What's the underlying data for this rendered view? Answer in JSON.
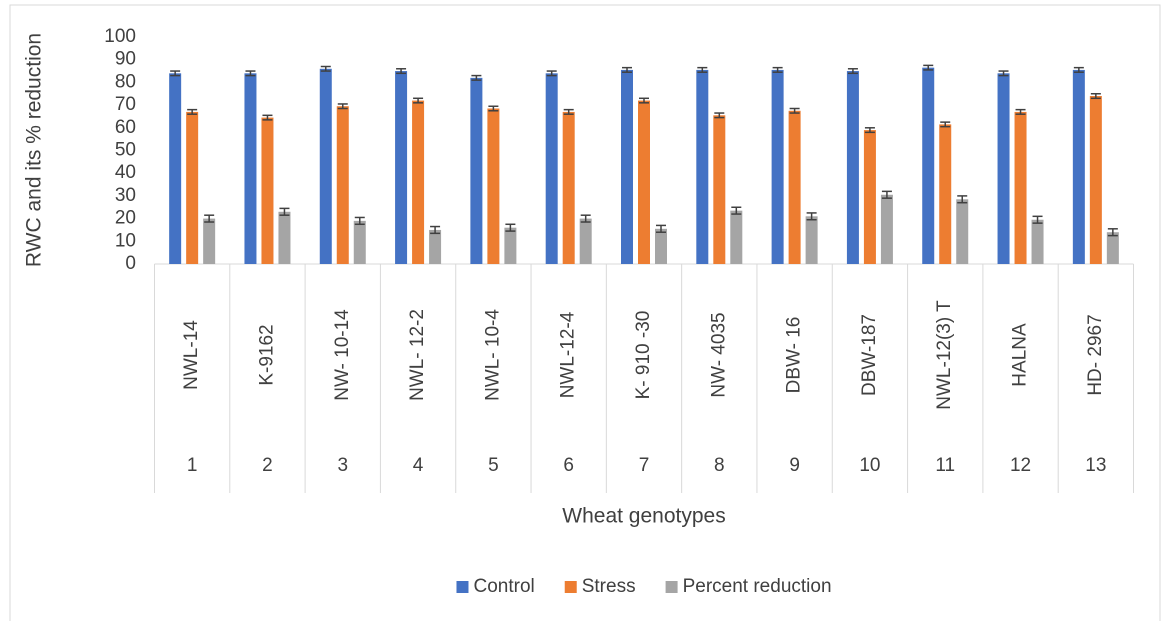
{
  "chart_data": {
    "type": "bar",
    "y_label": "RWC and its % reduction",
    "x_label": "Wheat genotypes",
    "categories": [
      "NWL-14",
      "K-9162",
      "NW- 10-14",
      "NWL- 12-2",
      "NWL- 10-4",
      "NWL-12-4",
      "K- 910 -30",
      "NW- 4035",
      "DBW- 16",
      "DBW-187",
      "NWL-12(3) T",
      "HALNA",
      "HD- 2967"
    ],
    "groups": [
      "1",
      "2",
      "3",
      "4",
      "5",
      "6",
      "7",
      "8",
      "9",
      "10",
      "11",
      "12",
      "13"
    ],
    "series": [
      {
        "name": "Control",
        "color": "#4472c4",
        "values": [
          84,
          84,
          86,
          85,
          82,
          84,
          85.5,
          85.5,
          85.5,
          85,
          86.5,
          84,
          85.5
        ],
        "errors": [
          1,
          1,
          1,
          1,
          1,
          1,
          1,
          1,
          1,
          1,
          1,
          1,
          1
        ]
      },
      {
        "name": "Stress",
        "color": "#ed7d31",
        "values": [
          67,
          64.5,
          69.5,
          72,
          68.5,
          67,
          72,
          65.5,
          67.5,
          59,
          61.5,
          67,
          74
        ],
        "errors": [
          1,
          1,
          1,
          1,
          1,
          1,
          1,
          1,
          1,
          1,
          1,
          1,
          1
        ]
      },
      {
        "name": "Percent reduction",
        "color": "#a5a5a5",
        "values": [
          20,
          23,
          19,
          15,
          16,
          20,
          15.5,
          23.5,
          21,
          30.5,
          28.5,
          19.5,
          14
        ],
        "errors": [
          1.5,
          1.5,
          1.5,
          1.5,
          1.5,
          1.5,
          1.5,
          1.5,
          1.5,
          1.5,
          1.5,
          1.5,
          1.5
        ]
      }
    ],
    "ylim": [
      0,
      100
    ],
    "yticks": [
      0,
      10,
      20,
      30,
      40,
      50,
      60,
      70,
      80,
      90,
      100
    ],
    "legend": "bottom"
  }
}
